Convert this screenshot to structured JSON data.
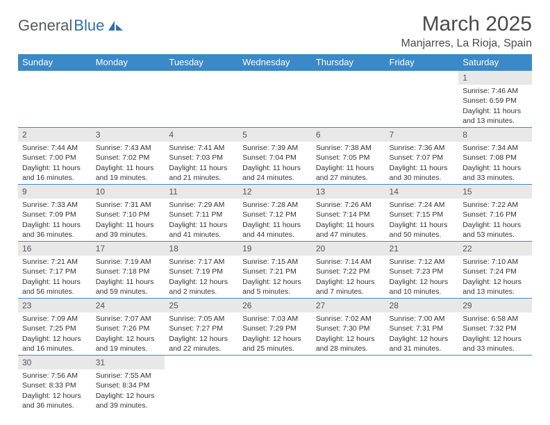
{
  "logo": {
    "part1": "General",
    "part2": "Blue"
  },
  "title": "March 2025",
  "subtitle": "Manjarres, La Rioja, Spain",
  "colors": {
    "header_bg": "#3b89c7",
    "header_fg": "#ffffff",
    "cell_border": "#3b89c7",
    "daynum_bg": "#e8e8e8",
    "text": "#333333",
    "logo_gray": "#58595b",
    "logo_blue": "#2f6fb0"
  },
  "weekdays": [
    "Sunday",
    "Monday",
    "Tuesday",
    "Wednesday",
    "Thursday",
    "Friday",
    "Saturday"
  ],
  "weeks": [
    [
      {
        "empty": true
      },
      {
        "empty": true
      },
      {
        "empty": true
      },
      {
        "empty": true
      },
      {
        "empty": true
      },
      {
        "empty": true
      },
      {
        "n": "1",
        "sunrise": "Sunrise: 7:46 AM",
        "sunset": "Sunset: 6:59 PM",
        "day1": "Daylight: 11 hours",
        "day2": "and 13 minutes."
      }
    ],
    [
      {
        "n": "2",
        "sunrise": "Sunrise: 7:44 AM",
        "sunset": "Sunset: 7:00 PM",
        "day1": "Daylight: 11 hours",
        "day2": "and 16 minutes."
      },
      {
        "n": "3",
        "sunrise": "Sunrise: 7:43 AM",
        "sunset": "Sunset: 7:02 PM",
        "day1": "Daylight: 11 hours",
        "day2": "and 19 minutes."
      },
      {
        "n": "4",
        "sunrise": "Sunrise: 7:41 AM",
        "sunset": "Sunset: 7:03 PM",
        "day1": "Daylight: 11 hours",
        "day2": "and 21 minutes."
      },
      {
        "n": "5",
        "sunrise": "Sunrise: 7:39 AM",
        "sunset": "Sunset: 7:04 PM",
        "day1": "Daylight: 11 hours",
        "day2": "and 24 minutes."
      },
      {
        "n": "6",
        "sunrise": "Sunrise: 7:38 AM",
        "sunset": "Sunset: 7:05 PM",
        "day1": "Daylight: 11 hours",
        "day2": "and 27 minutes."
      },
      {
        "n": "7",
        "sunrise": "Sunrise: 7:36 AM",
        "sunset": "Sunset: 7:07 PM",
        "day1": "Daylight: 11 hours",
        "day2": "and 30 minutes."
      },
      {
        "n": "8",
        "sunrise": "Sunrise: 7:34 AM",
        "sunset": "Sunset: 7:08 PM",
        "day1": "Daylight: 11 hours",
        "day2": "and 33 minutes."
      }
    ],
    [
      {
        "n": "9",
        "sunrise": "Sunrise: 7:33 AM",
        "sunset": "Sunset: 7:09 PM",
        "day1": "Daylight: 11 hours",
        "day2": "and 36 minutes."
      },
      {
        "n": "10",
        "sunrise": "Sunrise: 7:31 AM",
        "sunset": "Sunset: 7:10 PM",
        "day1": "Daylight: 11 hours",
        "day2": "and 39 minutes."
      },
      {
        "n": "11",
        "sunrise": "Sunrise: 7:29 AM",
        "sunset": "Sunset: 7:11 PM",
        "day1": "Daylight: 11 hours",
        "day2": "and 41 minutes."
      },
      {
        "n": "12",
        "sunrise": "Sunrise: 7:28 AM",
        "sunset": "Sunset: 7:12 PM",
        "day1": "Daylight: 11 hours",
        "day2": "and 44 minutes."
      },
      {
        "n": "13",
        "sunrise": "Sunrise: 7:26 AM",
        "sunset": "Sunset: 7:14 PM",
        "day1": "Daylight: 11 hours",
        "day2": "and 47 minutes."
      },
      {
        "n": "14",
        "sunrise": "Sunrise: 7:24 AM",
        "sunset": "Sunset: 7:15 PM",
        "day1": "Daylight: 11 hours",
        "day2": "and 50 minutes."
      },
      {
        "n": "15",
        "sunrise": "Sunrise: 7:22 AM",
        "sunset": "Sunset: 7:16 PM",
        "day1": "Daylight: 11 hours",
        "day2": "and 53 minutes."
      }
    ],
    [
      {
        "n": "16",
        "sunrise": "Sunrise: 7:21 AM",
        "sunset": "Sunset: 7:17 PM",
        "day1": "Daylight: 11 hours",
        "day2": "and 56 minutes."
      },
      {
        "n": "17",
        "sunrise": "Sunrise: 7:19 AM",
        "sunset": "Sunset: 7:18 PM",
        "day1": "Daylight: 11 hours",
        "day2": "and 59 minutes."
      },
      {
        "n": "18",
        "sunrise": "Sunrise: 7:17 AM",
        "sunset": "Sunset: 7:19 PM",
        "day1": "Daylight: 12 hours",
        "day2": "and 2 minutes."
      },
      {
        "n": "19",
        "sunrise": "Sunrise: 7:15 AM",
        "sunset": "Sunset: 7:21 PM",
        "day1": "Daylight: 12 hours",
        "day2": "and 5 minutes."
      },
      {
        "n": "20",
        "sunrise": "Sunrise: 7:14 AM",
        "sunset": "Sunset: 7:22 PM",
        "day1": "Daylight: 12 hours",
        "day2": "and 7 minutes."
      },
      {
        "n": "21",
        "sunrise": "Sunrise: 7:12 AM",
        "sunset": "Sunset: 7:23 PM",
        "day1": "Daylight: 12 hours",
        "day2": "and 10 minutes."
      },
      {
        "n": "22",
        "sunrise": "Sunrise: 7:10 AM",
        "sunset": "Sunset: 7:24 PM",
        "day1": "Daylight: 12 hours",
        "day2": "and 13 minutes."
      }
    ],
    [
      {
        "n": "23",
        "sunrise": "Sunrise: 7:09 AM",
        "sunset": "Sunset: 7:25 PM",
        "day1": "Daylight: 12 hours",
        "day2": "and 16 minutes."
      },
      {
        "n": "24",
        "sunrise": "Sunrise: 7:07 AM",
        "sunset": "Sunset: 7:26 PM",
        "day1": "Daylight: 12 hours",
        "day2": "and 19 minutes."
      },
      {
        "n": "25",
        "sunrise": "Sunrise: 7:05 AM",
        "sunset": "Sunset: 7:27 PM",
        "day1": "Daylight: 12 hours",
        "day2": "and 22 minutes."
      },
      {
        "n": "26",
        "sunrise": "Sunrise: 7:03 AM",
        "sunset": "Sunset: 7:29 PM",
        "day1": "Daylight: 12 hours",
        "day2": "and 25 minutes."
      },
      {
        "n": "27",
        "sunrise": "Sunrise: 7:02 AM",
        "sunset": "Sunset: 7:30 PM",
        "day1": "Daylight: 12 hours",
        "day2": "and 28 minutes."
      },
      {
        "n": "28",
        "sunrise": "Sunrise: 7:00 AM",
        "sunset": "Sunset: 7:31 PM",
        "day1": "Daylight: 12 hours",
        "day2": "and 31 minutes."
      },
      {
        "n": "29",
        "sunrise": "Sunrise: 6:58 AM",
        "sunset": "Sunset: 7:32 PM",
        "day1": "Daylight: 12 hours",
        "day2": "and 33 minutes."
      }
    ],
    [
      {
        "n": "30",
        "sunrise": "Sunrise: 7:56 AM",
        "sunset": "Sunset: 8:33 PM",
        "day1": "Daylight: 12 hours",
        "day2": "and 36 minutes."
      },
      {
        "n": "31",
        "sunrise": "Sunrise: 7:55 AM",
        "sunset": "Sunset: 8:34 PM",
        "day1": "Daylight: 12 hours",
        "day2": "and 39 minutes."
      },
      {
        "empty": true
      },
      {
        "empty": true
      },
      {
        "empty": true
      },
      {
        "empty": true
      },
      {
        "empty": true
      }
    ]
  ]
}
